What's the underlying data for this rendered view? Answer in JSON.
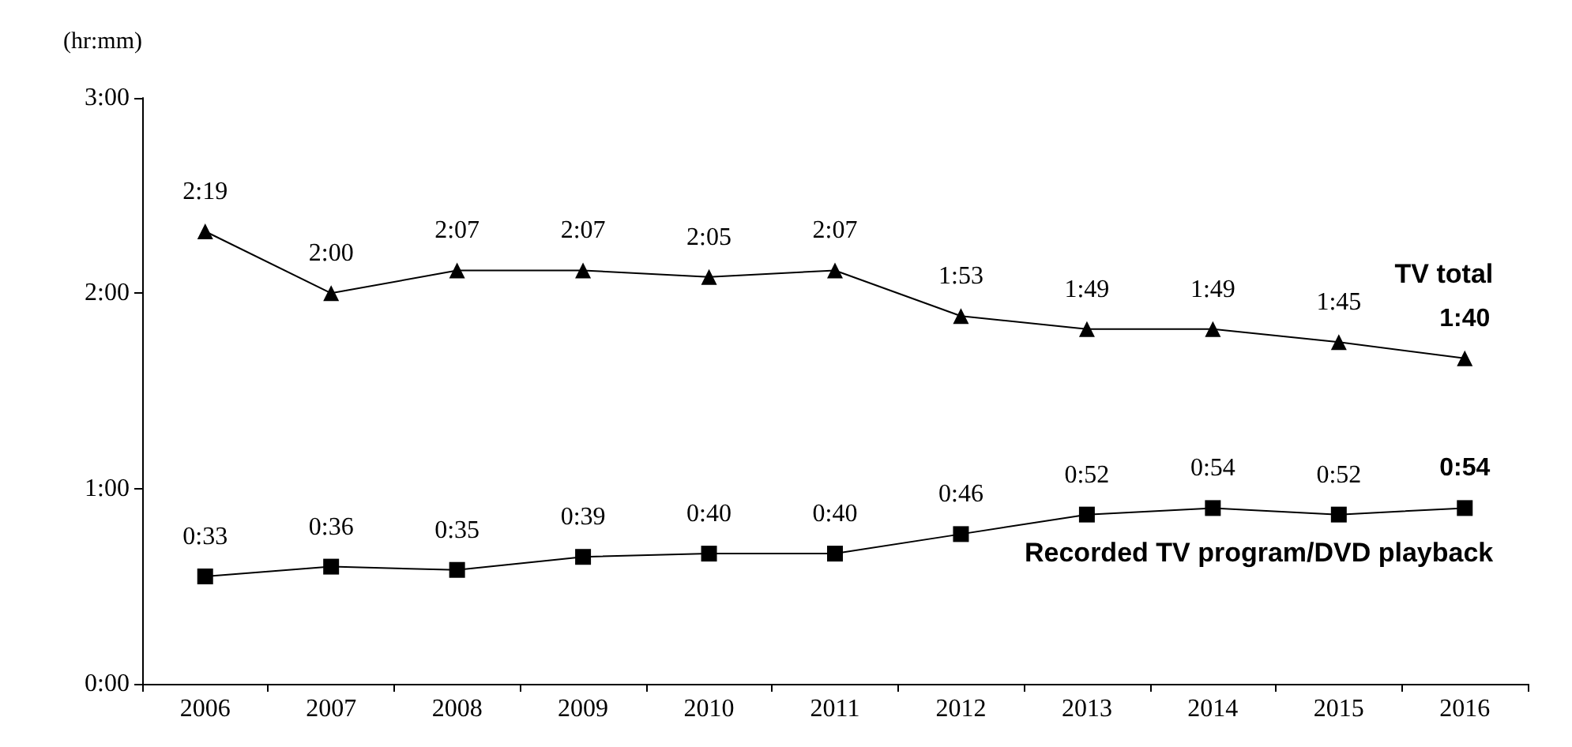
{
  "chart_data": {
    "type": "line",
    "ylabel": "(hr:mm)",
    "categories": [
      "2006",
      "2007",
      "2008",
      "2009",
      "2010",
      "2011",
      "2012",
      "2013",
      "2014",
      "2015",
      "2016"
    ],
    "series": [
      {
        "name": "TV total",
        "color": "#000000",
        "marker": "triangle",
        "values": [
          139,
          120,
          127,
          127,
          125,
          127,
          113,
          109,
          109,
          105,
          100
        ],
        "value_labels": [
          "2:19",
          "2:00",
          "2:07",
          "2:07",
          "2:05",
          "2:07",
          "1:53",
          "1:49",
          "1:49",
          "1:45",
          "1:40"
        ]
      },
      {
        "name": "Recorded TV program/DVD playback",
        "color": "#000000",
        "marker": "square",
        "values": [
          33,
          36,
          35,
          39,
          40,
          40,
          46,
          52,
          54,
          52,
          54
        ],
        "value_labels": [
          "0:33",
          "0:36",
          "0:35",
          "0:39",
          "0:40",
          "0:40",
          "0:46",
          "0:52",
          "0:54",
          "0:52",
          "0:54"
        ]
      }
    ],
    "ylim": [
      0,
      180
    ],
    "yticks": [
      {
        "value": 0,
        "label": "0:00"
      },
      {
        "value": 60,
        "label": "1:00"
      },
      {
        "value": 120,
        "label": "2:00"
      },
      {
        "value": 180,
        "label": "3:00"
      }
    ],
    "grid": false,
    "legend": false,
    "line_style": "solid"
  }
}
